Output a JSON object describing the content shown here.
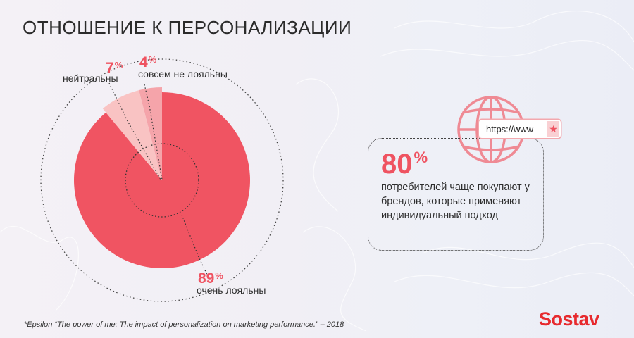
{
  "title": "ОТНОШЕНИЕ К ПЕРСОНАЛИЗАЦИИ",
  "chart_data": {
    "type": "pie",
    "title": "ОТНОШЕНИЕ К ПЕРСОНАЛИЗАЦИИ",
    "slices": [
      {
        "label": "очень лояльны",
        "value": 89,
        "display": "89",
        "sign": "%",
        "color": "#f05462"
      },
      {
        "label": "нейтральны",
        "value": 7,
        "display": "7",
        "sign": "%",
        "color": "#f9c3c3"
      },
      {
        "label": "совсем не лояльны",
        "value": 4,
        "display": "4",
        "sign": "%",
        "color": "#f5a4aa"
      }
    ]
  },
  "stat": {
    "value": "80",
    "sign": "%",
    "text": "потребителей чаще покупают у брендов, которые применяют индивидуальный подход"
  },
  "url_bar": {
    "text": "https://www",
    "star": "★"
  },
  "colors": {
    "accent": "#ef5361",
    "brand": "#e72a2e",
    "globe": "#ef8a94"
  },
  "icons": [
    "globe-icon",
    "star-icon"
  ],
  "source": "*Epsilon “The power of me: The impact of personalization on marketing performance.” – 2018",
  "brand": "Sostav"
}
